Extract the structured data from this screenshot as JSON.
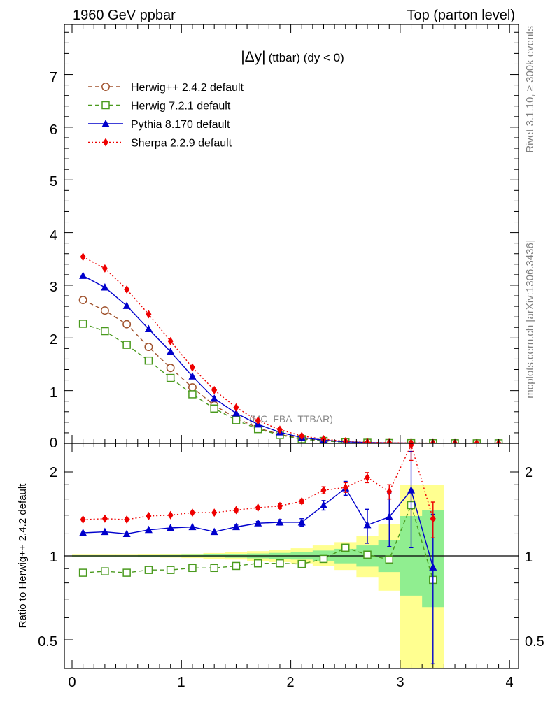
{
  "header": {
    "left_title": "1960 GeV ppbar",
    "right_title": "Top (parton level)"
  },
  "side_text": {
    "rivet": "Rivet 3.1.10, ≥ 300k events",
    "mcplots": "mcplots.cern.ch [arXiv:1306.3436]"
  },
  "watermark": "(MC_FBA_TTBAR)",
  "chart_data": [
    {
      "type": "line",
      "panel": "main",
      "title_symbol": "|Δy|",
      "title_rest": "(ttbar) (dy < 0)",
      "xlim": [
        -0.1,
        4.05
      ],
      "ylim": [
        0,
        8
      ],
      "yticks": [
        1,
        2,
        3,
        4,
        5,
        6,
        7
      ],
      "ytick_labels": [
        "1",
        "2",
        "3",
        "4",
        "5",
        "6",
        "7"
      ],
      "ytick_zero_label": "0",
      "x": [
        0.1,
        0.3,
        0.5,
        0.7,
        0.9,
        1.1,
        1.3,
        1.5,
        1.7,
        1.9,
        2.1,
        2.3,
        2.5,
        2.7,
        2.9,
        3.1,
        3.3,
        3.5,
        3.7,
        3.9
      ],
      "series": [
        {
          "name": "Herwig++ 2.4.2 default",
          "color": "#a0522d",
          "marker": "open-circle",
          "line": "dashed",
          "values": [
            2.72,
            2.52,
            2.26,
            1.83,
            1.43,
            1.06,
            0.72,
            0.48,
            0.29,
            0.17,
            0.09,
            0.05,
            0.025,
            0.013,
            0.007,
            0.004,
            0.003,
            0.002,
            0.001,
            0.001
          ]
        },
        {
          "name": "Herwig 7.2.1 default",
          "color": "#4a9a1e",
          "marker": "open-square",
          "line": "dashed",
          "values": [
            2.27,
            2.13,
            1.87,
            1.57,
            1.24,
            0.93,
            0.66,
            0.44,
            0.27,
            0.16,
            0.08,
            0.045,
            0.022,
            0.012,
            0.006,
            0.004,
            0.003,
            0.002,
            0.001,
            0.001
          ]
        },
        {
          "name": "Pythia 8.170 default",
          "color": "#0000cc",
          "marker": "filled-triangle",
          "line": "solid",
          "values": [
            3.18,
            2.96,
            2.61,
            2.17,
            1.74,
            1.27,
            0.85,
            0.57,
            0.36,
            0.21,
            0.11,
            0.06,
            0.03,
            0.015,
            0.008,
            0.005,
            0.003,
            0.002,
            0.001,
            0.001
          ]
        },
        {
          "name": "Sherpa 2.2.9 default",
          "color": "#ee0000",
          "marker": "filled-diamond",
          "line": "dotted",
          "values": [
            3.54,
            3.32,
            2.92,
            2.45,
            1.94,
            1.44,
            1.01,
            0.68,
            0.43,
            0.26,
            0.14,
            0.08,
            0.04,
            0.02,
            0.012,
            0.008,
            0.005,
            0.003,
            0.002,
            0.001
          ]
        }
      ]
    },
    {
      "type": "line",
      "panel": "ratio",
      "ylabel": "Ratio to Herwig++ 2.4.2 default",
      "yscale": "log",
      "ylim": [
        0.42,
        2.35
      ],
      "xlim": [
        -0.1,
        4.05
      ],
      "xticks": [
        0,
        1,
        2,
        3,
        4
      ],
      "xtick_labels": [
        "0",
        "1",
        "2",
        "3",
        "4"
      ],
      "ytick_labels": [
        "0.5",
        "1",
        "2"
      ],
      "yticks": [
        0.5,
        1,
        2
      ],
      "reference_line": 1,
      "x": [
        0.1,
        0.3,
        0.5,
        0.7,
        0.9,
        1.1,
        1.3,
        1.5,
        1.7,
        1.9,
        2.1,
        2.3,
        2.5,
        2.7,
        2.9,
        3.1,
        3.3
      ],
      "bands": {
        "bin_edges": [
          0.0,
          0.2,
          0.4,
          0.6,
          0.8,
          1.0,
          1.2,
          1.4,
          1.6,
          1.8,
          2.0,
          2.2,
          2.4,
          2.6,
          2.8,
          3.0,
          3.2,
          3.4
        ],
        "green_low": [
          0.995,
          0.995,
          0.995,
          0.994,
          0.993,
          0.991,
          0.988,
          0.985,
          0.98,
          0.975,
          0.97,
          0.955,
          0.94,
          0.915,
          0.875,
          0.72,
          0.655
        ],
        "green_high": [
          1.005,
          1.005,
          1.005,
          1.006,
          1.007,
          1.009,
          1.012,
          1.015,
          1.02,
          1.025,
          1.03,
          1.045,
          1.06,
          1.09,
          1.14,
          1.39,
          1.46
        ],
        "yellow_low": [
          0.99,
          0.99,
          0.99,
          0.988,
          0.986,
          0.982,
          0.977,
          0.97,
          0.96,
          0.95,
          0.94,
          0.92,
          0.89,
          0.84,
          0.75,
          0.3,
          0.3
        ],
        "yellow_high": [
          1.01,
          1.01,
          1.01,
          1.012,
          1.014,
          1.018,
          1.024,
          1.03,
          1.04,
          1.05,
          1.065,
          1.09,
          1.12,
          1.18,
          1.3,
          1.8,
          1.8
        ],
        "green_color": "#90ee90",
        "yellow_color": "#ffff90"
      },
      "series": [
        {
          "name": "Herwig 7.2.1 default",
          "color": "#4a9a1e",
          "marker": "open-square",
          "line": "dashed",
          "values": [
            0.87,
            0.88,
            0.87,
            0.89,
            0.89,
            0.905,
            0.905,
            0.92,
            0.94,
            0.94,
            0.935,
            0.975,
            1.07,
            1.01,
            0.97,
            1.52,
            0.82
          ],
          "err": [
            0,
            0,
            0,
            0,
            0,
            0,
            0,
            0,
            0,
            0,
            0,
            0,
            0,
            0,
            0,
            0,
            0
          ]
        },
        {
          "name": "Pythia 8.170 default",
          "color": "#0000cc",
          "marker": "filled-triangle",
          "line": "solid",
          "values": [
            1.21,
            1.22,
            1.2,
            1.24,
            1.26,
            1.27,
            1.22,
            1.27,
            1.31,
            1.32,
            1.32,
            1.52,
            1.75,
            1.29,
            1.38,
            1.72,
            0.91
          ],
          "err": [
            0.01,
            0.01,
            0.01,
            0.01,
            0.01,
            0.012,
            0.015,
            0.02,
            0.02,
            0.03,
            0.04,
            0.06,
            0.1,
            0.18,
            0.3,
            0.65,
            0.5
          ]
        },
        {
          "name": "Sherpa 2.2.9 default",
          "color": "#ee0000",
          "marker": "filled-diamond",
          "line": "dotted",
          "values": [
            1.35,
            1.36,
            1.35,
            1.39,
            1.4,
            1.43,
            1.43,
            1.46,
            1.49,
            1.51,
            1.57,
            1.72,
            1.76,
            1.91,
            1.7,
            2.5,
            1.36
          ],
          "err": [
            0.01,
            0.01,
            0.01,
            0.01,
            0.01,
            0.012,
            0.015,
            0.02,
            0.02,
            0.03,
            0.03,
            0.05,
            0.07,
            0.08,
            0.1,
            0.3,
            0.2
          ]
        }
      ]
    }
  ]
}
